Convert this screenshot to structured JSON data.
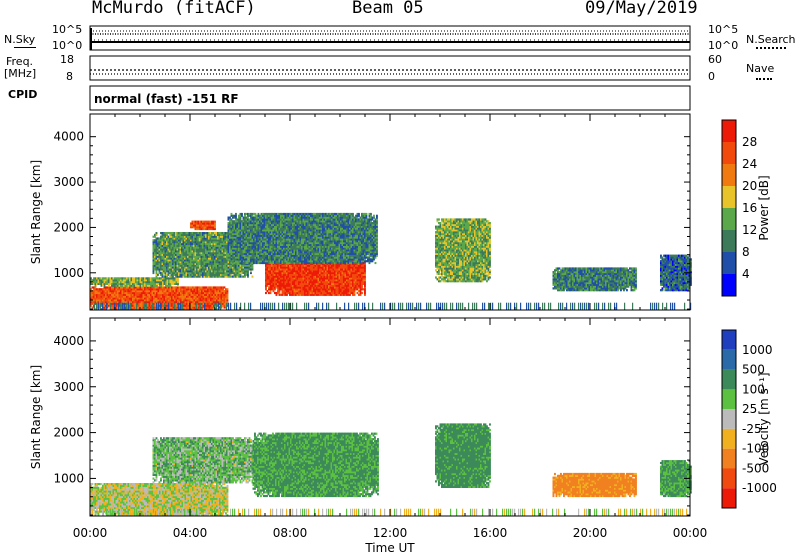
{
  "header": {
    "station": "McMurdo (fitACF)",
    "beam": "Beam 05",
    "date": "09/May/2019"
  },
  "top_panel": {
    "left_label": "N.Sky",
    "left_ticks": [
      "10^5",
      "10^0"
    ],
    "right_label": "N.Search",
    "right_ticks": [
      "10^5",
      "10^0"
    ]
  },
  "freq_panel": {
    "left_label_1": "Freq.",
    "left_label_2": "[MHz]",
    "left_ticks": [
      "18",
      "8"
    ],
    "right_label": "Nave",
    "right_ticks": [
      "60",
      "0"
    ]
  },
  "cpid": {
    "label": "CPID",
    "mode_text": "normal (fast) -151 RF"
  },
  "axes": {
    "ylabel": "Slant Range [km]",
    "xlabel": "Time UT",
    "x_tick_labels": [
      "00:00",
      "04:00",
      "08:00",
      "12:00",
      "16:00",
      "20:00",
      "00:00"
    ],
    "y_tick_labels": [
      "1000",
      "2000",
      "3000",
      "4000"
    ]
  },
  "power_bar": {
    "label": "Power [dB]",
    "ticks": [
      "4",
      "8",
      "12",
      "16",
      "20",
      "24",
      "28"
    ],
    "colors": [
      "#0000ff",
      "#1f4fa8",
      "#3c7a5a",
      "#5aa84a",
      "#e8c42a",
      "#f07a10",
      "#f24a0c",
      "#ee1a08"
    ]
  },
  "velocity_bar": {
    "label": "Velocity [m s⁻¹]",
    "ticks": [
      "1000",
      "500",
      "100",
      "25",
      "-25",
      "-100",
      "-500",
      "-1000"
    ],
    "colors": [
      "#1f3fbf",
      "#2a6aa8",
      "#3c8a5a",
      "#5cc040",
      "#bbbbbb",
      "#f0b020",
      "#f08020",
      "#f04a10",
      "#ee1a08"
    ]
  },
  "chart_data": [
    {
      "type": "heatmap",
      "title": "Power [dB]",
      "xlabel": "Time UT",
      "ylabel": "Slant Range [km]",
      "xlim": [
        0,
        24
      ],
      "ylim": [
        180,
        4500
      ],
      "value_range": [
        0,
        30
      ],
      "regions": [
        {
          "t0": 0.0,
          "t1": 5.5,
          "r0": 180,
          "r1": 700,
          "value": 26
        },
        {
          "t0": 0.0,
          "t1": 3.5,
          "r0": 700,
          "r1": 900,
          "value": 14
        },
        {
          "t0": 2.5,
          "t1": 6.5,
          "r0": 900,
          "r1": 1900,
          "value": 12
        },
        {
          "t0": 4.0,
          "t1": 5.0,
          "r0": 1950,
          "r1": 2150,
          "value": 26
        },
        {
          "t0": 7.0,
          "t1": 11.0,
          "r0": 500,
          "r1": 1500,
          "value": 28
        },
        {
          "t0": 5.5,
          "t1": 11.5,
          "r0": 1200,
          "r1": 2300,
          "value": 10
        },
        {
          "t0": 13.8,
          "t1": 16.0,
          "r0": 800,
          "r1": 2200,
          "value": 14
        },
        {
          "t0": 18.5,
          "t1": 21.8,
          "r0": 600,
          "r1": 1100,
          "value": 10
        },
        {
          "t0": 22.8,
          "t1": 24.0,
          "r0": 600,
          "r1": 1400,
          "value": 8
        }
      ]
    },
    {
      "type": "heatmap",
      "title": "Velocity [m s⁻¹]",
      "xlabel": "Time UT",
      "ylabel": "Slant Range [km]",
      "xlim": [
        0,
        24
      ],
      "ylim": [
        180,
        4500
      ],
      "value_range": [
        -1000,
        1000
      ],
      "regions": [
        {
          "t0": 0.0,
          "t1": 5.5,
          "r0": 180,
          "r1": 900,
          "value": 0
        },
        {
          "t0": 2.5,
          "t1": 6.5,
          "r0": 900,
          "r1": 1900,
          "value": 60
        },
        {
          "t0": 6.5,
          "t1": 11.5,
          "r0": 600,
          "r1": 2000,
          "value": 120
        },
        {
          "t0": 13.8,
          "t1": 16.0,
          "r0": 800,
          "r1": 2200,
          "value": 150
        },
        {
          "t0": 18.5,
          "t1": 21.8,
          "r0": 600,
          "r1": 1100,
          "value": -150
        },
        {
          "t0": 22.8,
          "t1": 24.0,
          "r0": 600,
          "r1": 1400,
          "value": 120
        }
      ]
    }
  ]
}
